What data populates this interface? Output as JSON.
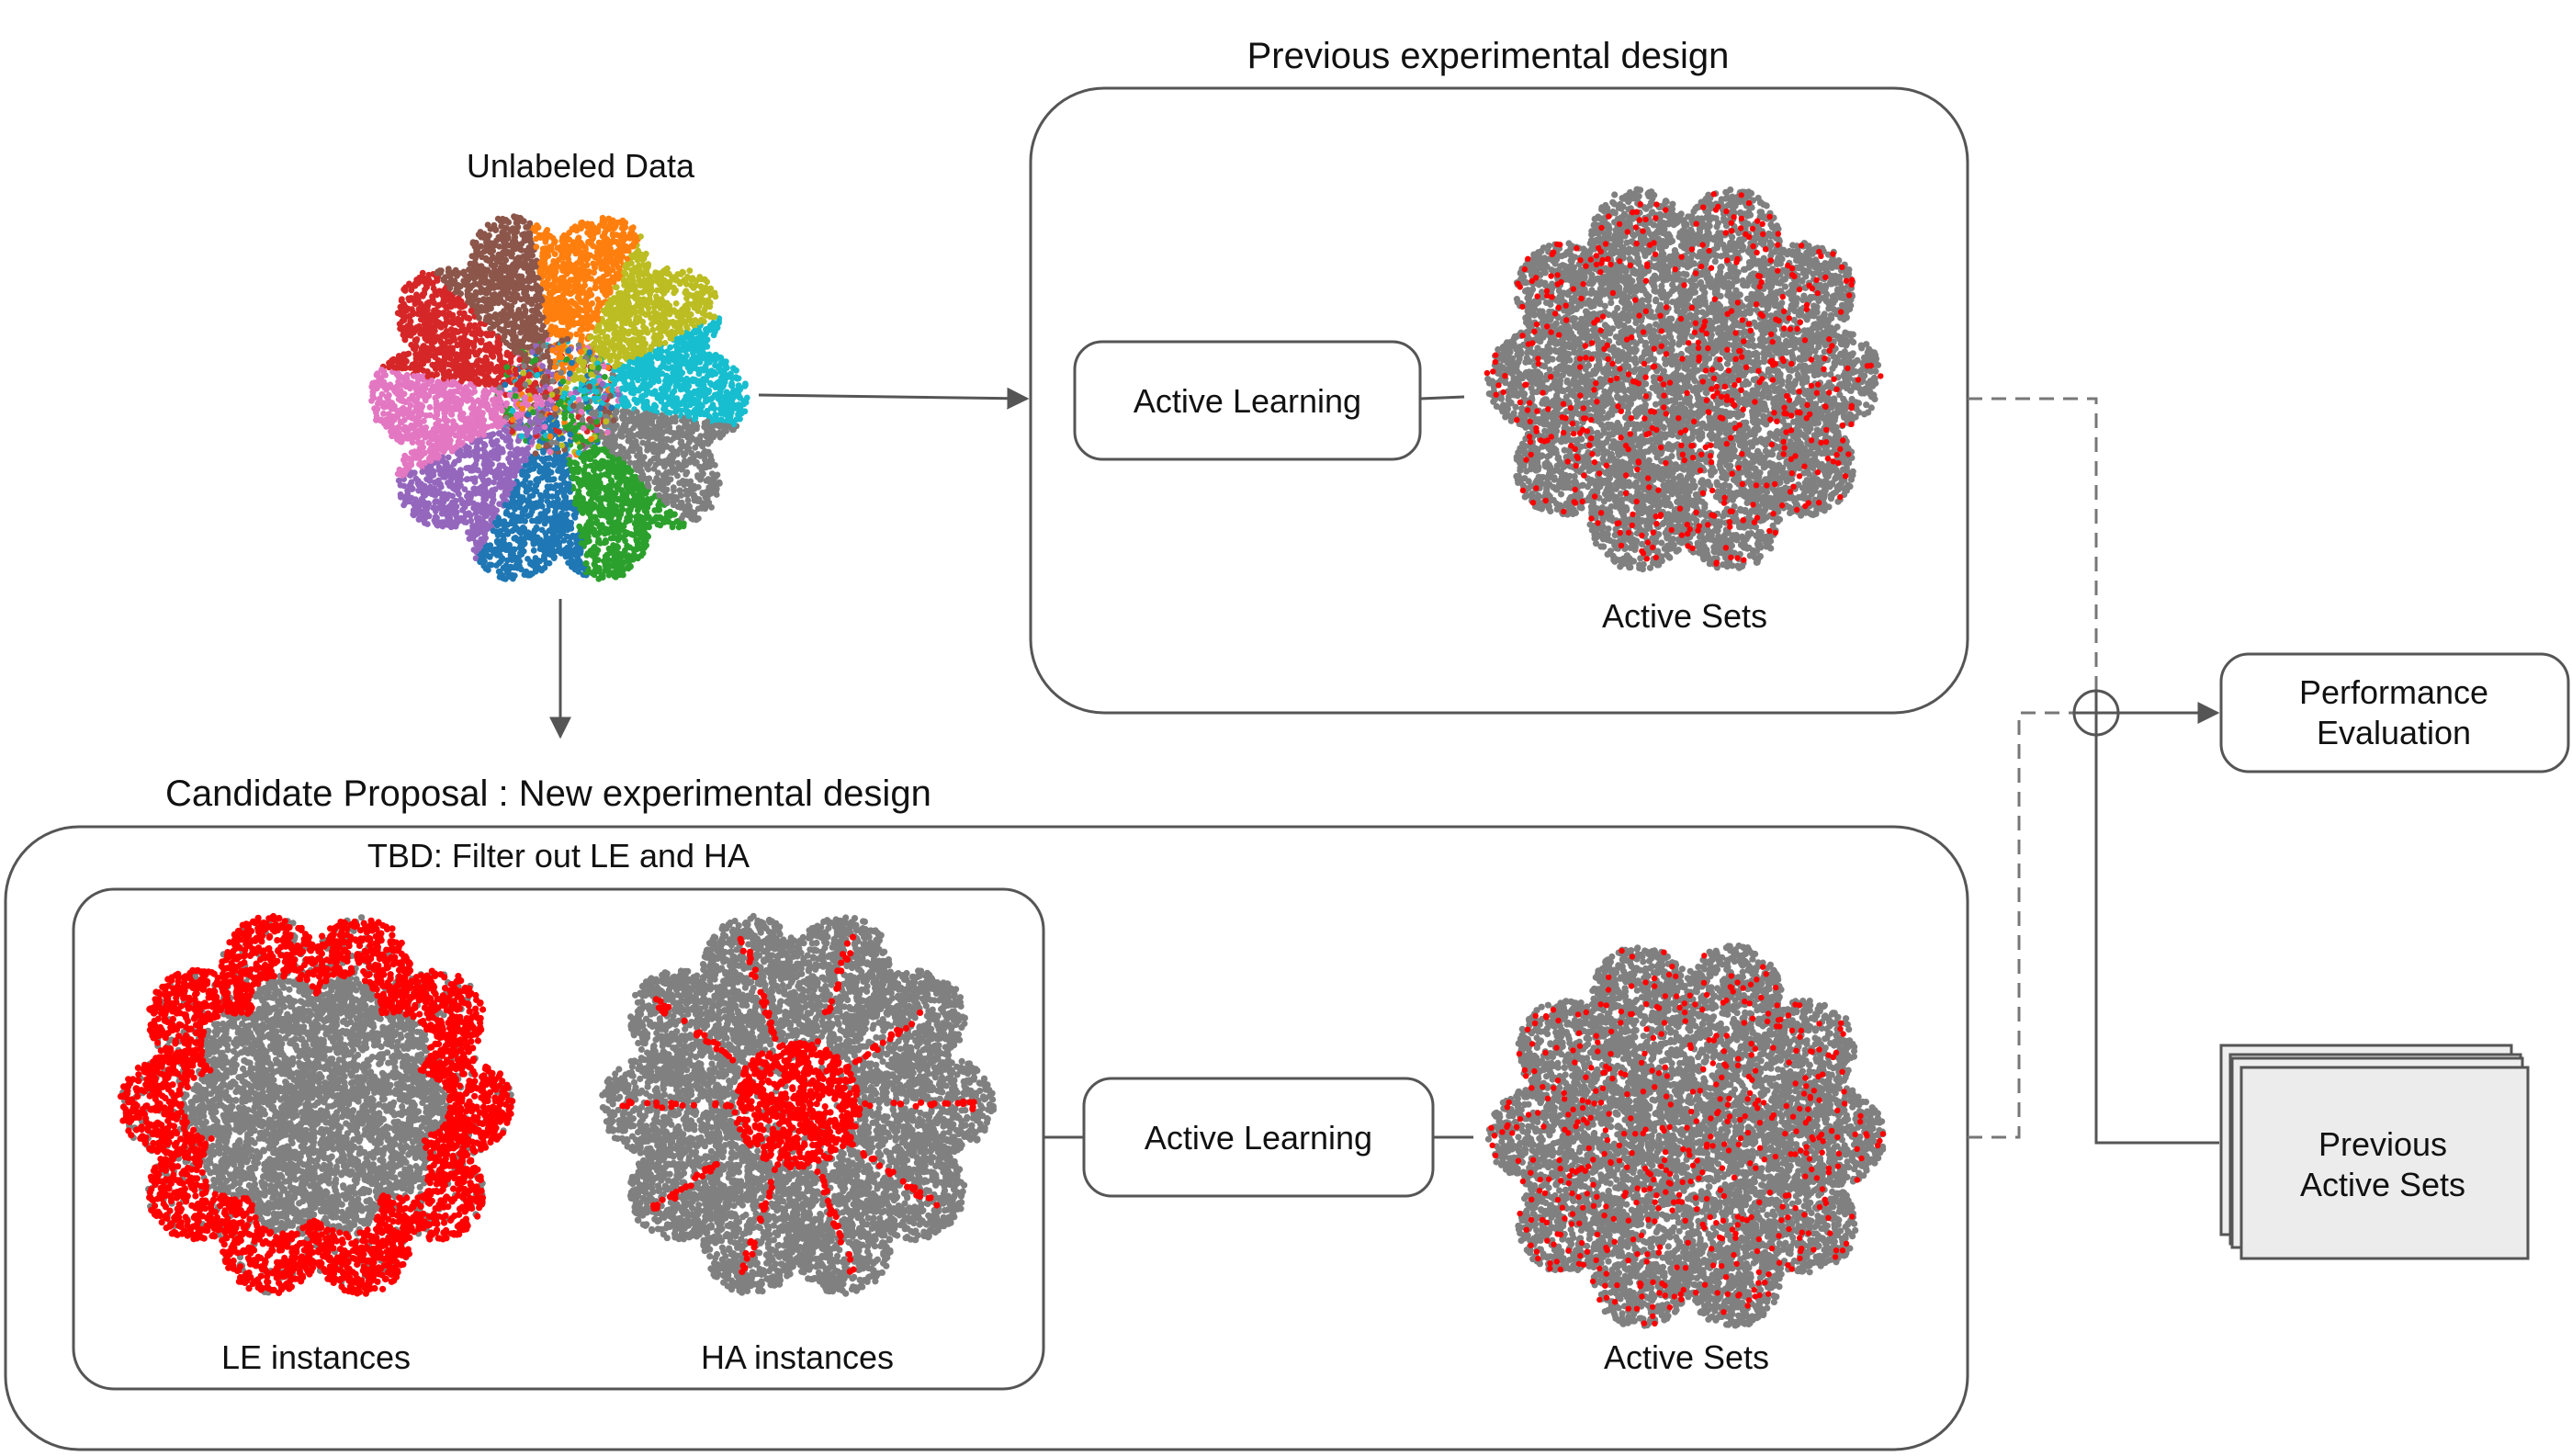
{
  "unlabeled": {
    "title": "Unlabeled Data"
  },
  "previous_design": {
    "title": "Previous experimental design",
    "active_learning": "Active Learning",
    "active_sets": "Active Sets"
  },
  "new_design": {
    "title": "Candidate Proposal : New experimental design",
    "filter_title": "TBD: Filter out LE and HA",
    "le_label": "LE instances",
    "ha_label": "HA instances",
    "active_learning": "Active Learning",
    "active_sets": "Active Sets"
  },
  "performance": {
    "line1": "Performance",
    "line2": "Evaluation"
  },
  "previous_sets": {
    "line1": "Previous",
    "line2": "Active Sets"
  },
  "colors": {
    "gray_points": "#808080",
    "red_points": "#ff0000",
    "cluster_palette": [
      "#1f77b4",
      "#ff7f0e",
      "#2ca02c",
      "#d62728",
      "#9467bd",
      "#8c564b",
      "#e377c2",
      "#7f7f7f",
      "#bcbd22",
      "#17becf"
    ]
  }
}
